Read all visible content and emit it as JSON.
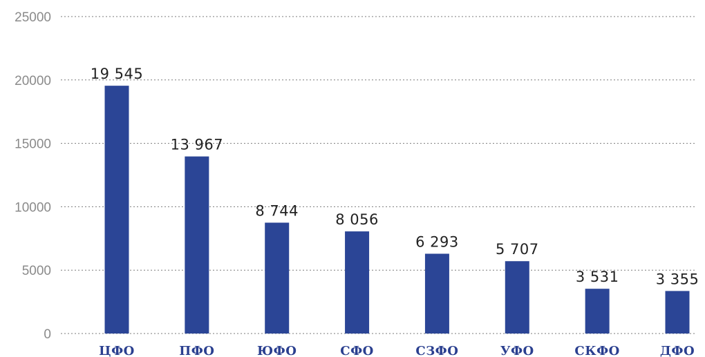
{
  "chart_data": {
    "type": "bar",
    "title": "",
    "xlabel": "",
    "ylabel": "",
    "categories": [
      "ЦФО",
      "ПФО",
      "ЮФО",
      "СФО",
      "СЗФО",
      "УФО",
      "СКФО",
      "ДФО"
    ],
    "values": [
      19545,
      13967,
      8744,
      8056,
      6293,
      5707,
      3531,
      3355
    ],
    "value_labels": [
      "19 545",
      "13 967",
      "8 744",
      "8 056",
      "6 293",
      "5 707",
      "3 531",
      "3 355"
    ],
    "y_ticks": [
      0,
      5000,
      10000,
      15000,
      20000,
      25000
    ],
    "ylim": [
      0,
      25000
    ],
    "grid": true,
    "legend": "none",
    "colors": {
      "bar": "#2b4596",
      "category_text": "#2a3f8f",
      "tick_text": "#8a8a8a",
      "value_text": "#222222"
    }
  }
}
